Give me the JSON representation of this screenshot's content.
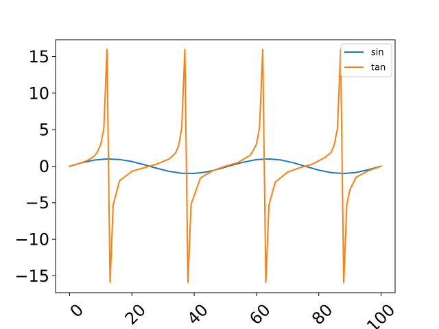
{
  "chart_data": {
    "type": "line",
    "xlim": [
      -4.5,
      104.5
    ],
    "ylim": [
      -17.3,
      17.3
    ],
    "x_ticks": [
      0,
      20,
      40,
      60,
      80,
      100
    ],
    "y_ticks": [
      -15,
      -10,
      -5,
      0,
      5,
      10,
      15
    ],
    "x_tick_labels": [
      "0",
      "20",
      "40",
      "60",
      "80",
      "100"
    ],
    "y_tick_labels": [
      "−15",
      "−10",
      "−5",
      "0",
      "5",
      "10",
      "15"
    ],
    "x_tick_rotation_deg": 45,
    "grid": false,
    "legend_position": "top-right",
    "series": [
      {
        "name": "sin",
        "color": "#1f77b4",
        "x": [
          0,
          4,
          8,
          12,
          16,
          20,
          24,
          28,
          32,
          36,
          40,
          44,
          48,
          52,
          56,
          60,
          64,
          68,
          72,
          76,
          80,
          84,
          88,
          92,
          96,
          100
        ],
        "y": [
          0,
          0.48,
          0.84,
          1.0,
          0.92,
          0.64,
          0.2,
          -0.28,
          -0.71,
          -0.96,
          -0.98,
          -0.78,
          -0.38,
          0.12,
          0.57,
          0.9,
          1.0,
          0.84,
          0.45,
          -0.05,
          -0.54,
          -0.88,
          -1.0,
          -0.85,
          -0.47,
          0
        ]
      },
      {
        "name": "tan",
        "color": "#ff7f0e",
        "x": [
          0,
          2,
          4,
          6,
          8,
          9,
          10,
          11,
          12,
          13,
          14,
          16,
          20,
          24,
          28,
          32,
          34,
          35,
          36,
          37,
          38,
          39,
          42,
          46,
          50,
          54,
          58,
          59,
          60,
          61,
          62,
          63,
          64,
          66,
          70,
          74,
          78,
          82,
          84,
          85,
          86,
          87,
          88,
          89,
          90,
          92,
          96,
          100
        ],
        "y": [
          0,
          0.25,
          0.5,
          0.85,
          1.4,
          2.0,
          3.0,
          5.2,
          16.0,
          -15.9,
          -5.3,
          -2.0,
          -0.7,
          -0.2,
          0.3,
          1.0,
          1.8,
          2.8,
          5.2,
          16.0,
          -15.9,
          -5.2,
          -1.6,
          -0.6,
          0,
          0.5,
          1.5,
          2.2,
          3.0,
          5.4,
          16.0,
          -15.9,
          -5.3,
          -2.2,
          -0.8,
          -0.2,
          0.3,
          1.2,
          1.9,
          3.0,
          5.2,
          16.0,
          -15.9,
          -5.2,
          -3.2,
          -1.5,
          -0.6,
          0
        ]
      }
    ]
  }
}
